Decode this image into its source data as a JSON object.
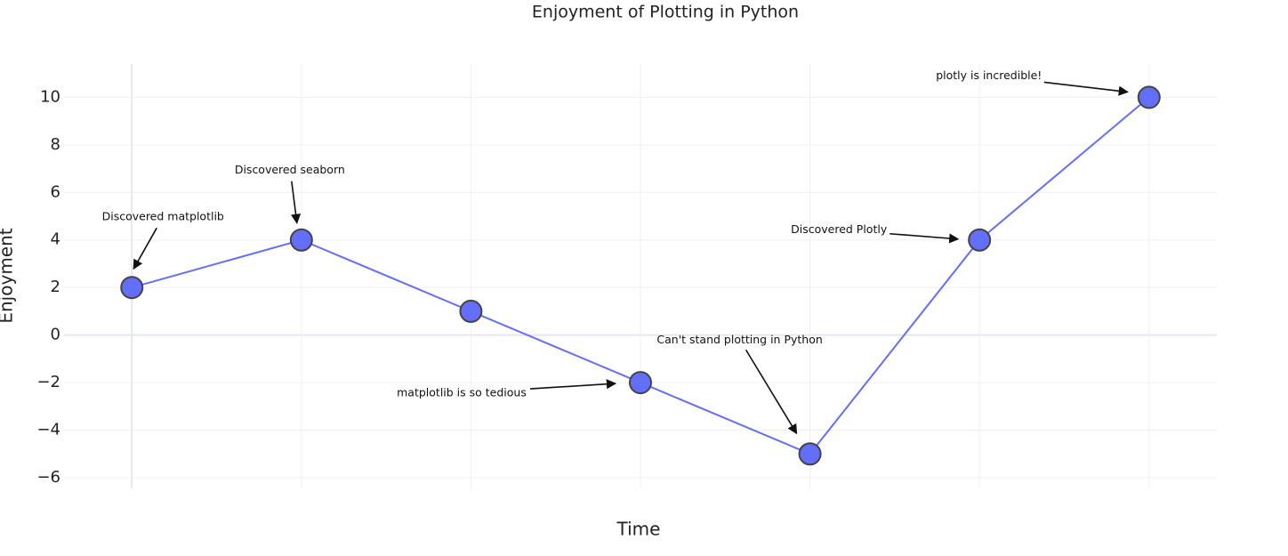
{
  "chart_data": {
    "type": "line",
    "title": "Enjoyment of Plotting in Python",
    "x_label": "Time",
    "y_label": "Enjoyment",
    "x": [
      0,
      1,
      2,
      3,
      4,
      5,
      6
    ],
    "series": [
      {
        "name": "Enjoyment",
        "color": "#636efa",
        "values": [
          2,
          4,
          1,
          -2,
          -5,
          4,
          10
        ]
      }
    ],
    "xlim": [
      -0.4,
      6.4
    ],
    "ylim": [
      -6.45,
      11.4
    ],
    "yticks": [
      {
        "value": -6,
        "label": "−6"
      },
      {
        "value": -4,
        "label": "−4"
      },
      {
        "value": -2,
        "label": "−2"
      },
      0,
      2,
      4,
      6,
      8,
      10
    ],
    "grid": true,
    "annotations": [
      {
        "text": "Discovered matplotlib",
        "x": 0,
        "y": 2
      },
      {
        "text": "Discovered seaborn",
        "x": 1,
        "y": 4
      },
      {
        "text": "matplotlib is so tedious",
        "x": 3,
        "y": -2
      },
      {
        "text": "Can't stand plotting in Python",
        "x": 4,
        "y": -5
      },
      {
        "text": "Discovered Plotly",
        "x": 5,
        "y": 4
      },
      {
        "text": "plotly is incredible!",
        "x": 6,
        "y": 10
      }
    ]
  }
}
